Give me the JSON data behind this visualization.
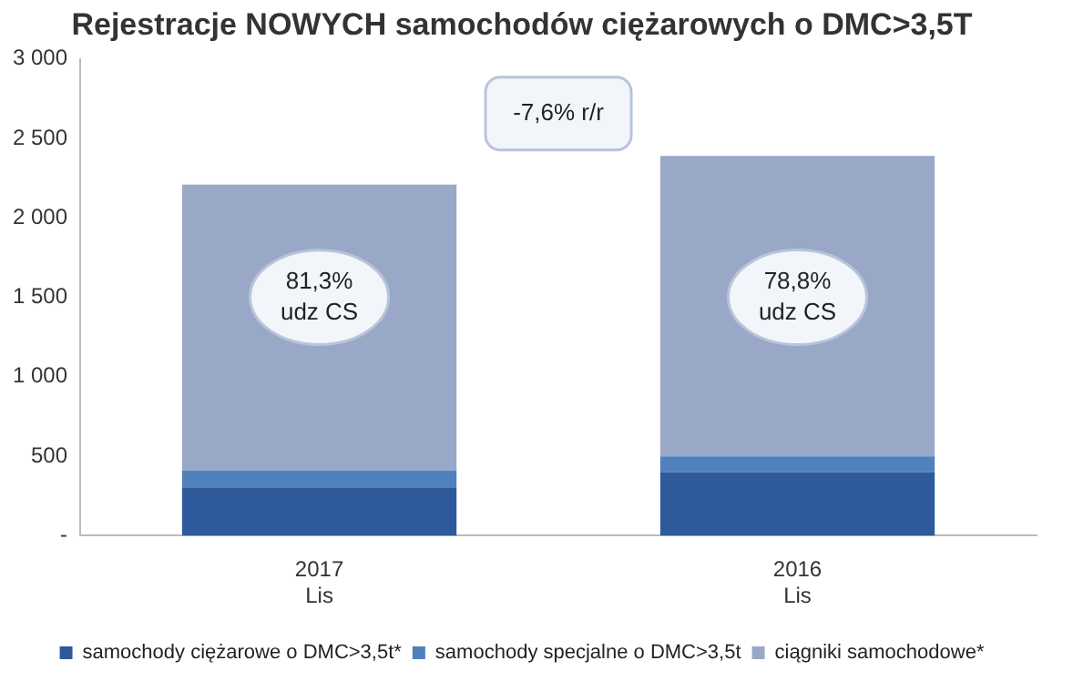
{
  "chart_data": {
    "type": "bar",
    "title": "Rejestracje NOWYCH samochodów ciężarowych o DMC>3,5T",
    "categories": [
      "2017\nLis",
      "2016\nLis"
    ],
    "stacked": true,
    "series": [
      {
        "name": "samochody ciężarowe o DMC>3,5t*",
        "color": "#2e5a9c",
        "values": [
          300,
          400
        ]
      },
      {
        "name": "samochody specjalne o DMC>3,5t",
        "color": "#4f81bd",
        "values": [
          110,
          100
        ]
      },
      {
        "name": "ciągniki samochodowe*",
        "color": "#9aa8c8",
        "values": [
          1800,
          1890
        ]
      }
    ],
    "ylim": [
      0,
      3000
    ],
    "yticks": [
      {
        "value": 0,
        "label": "-"
      },
      {
        "value": 500,
        "label": "500"
      },
      {
        "value": 1000,
        "label": "1 000"
      },
      {
        "value": 1500,
        "label": "1 500"
      },
      {
        "value": 2000,
        "label": "2 000"
      },
      {
        "value": 2500,
        "label": "2 500"
      },
      {
        "value": 3000,
        "label": "3 000"
      }
    ],
    "grid": false,
    "legend": "bottom",
    "annotations": [
      "-7,6% r/r",
      "81,3%\nudz CS",
      "78,8%\nudz CS"
    ]
  }
}
